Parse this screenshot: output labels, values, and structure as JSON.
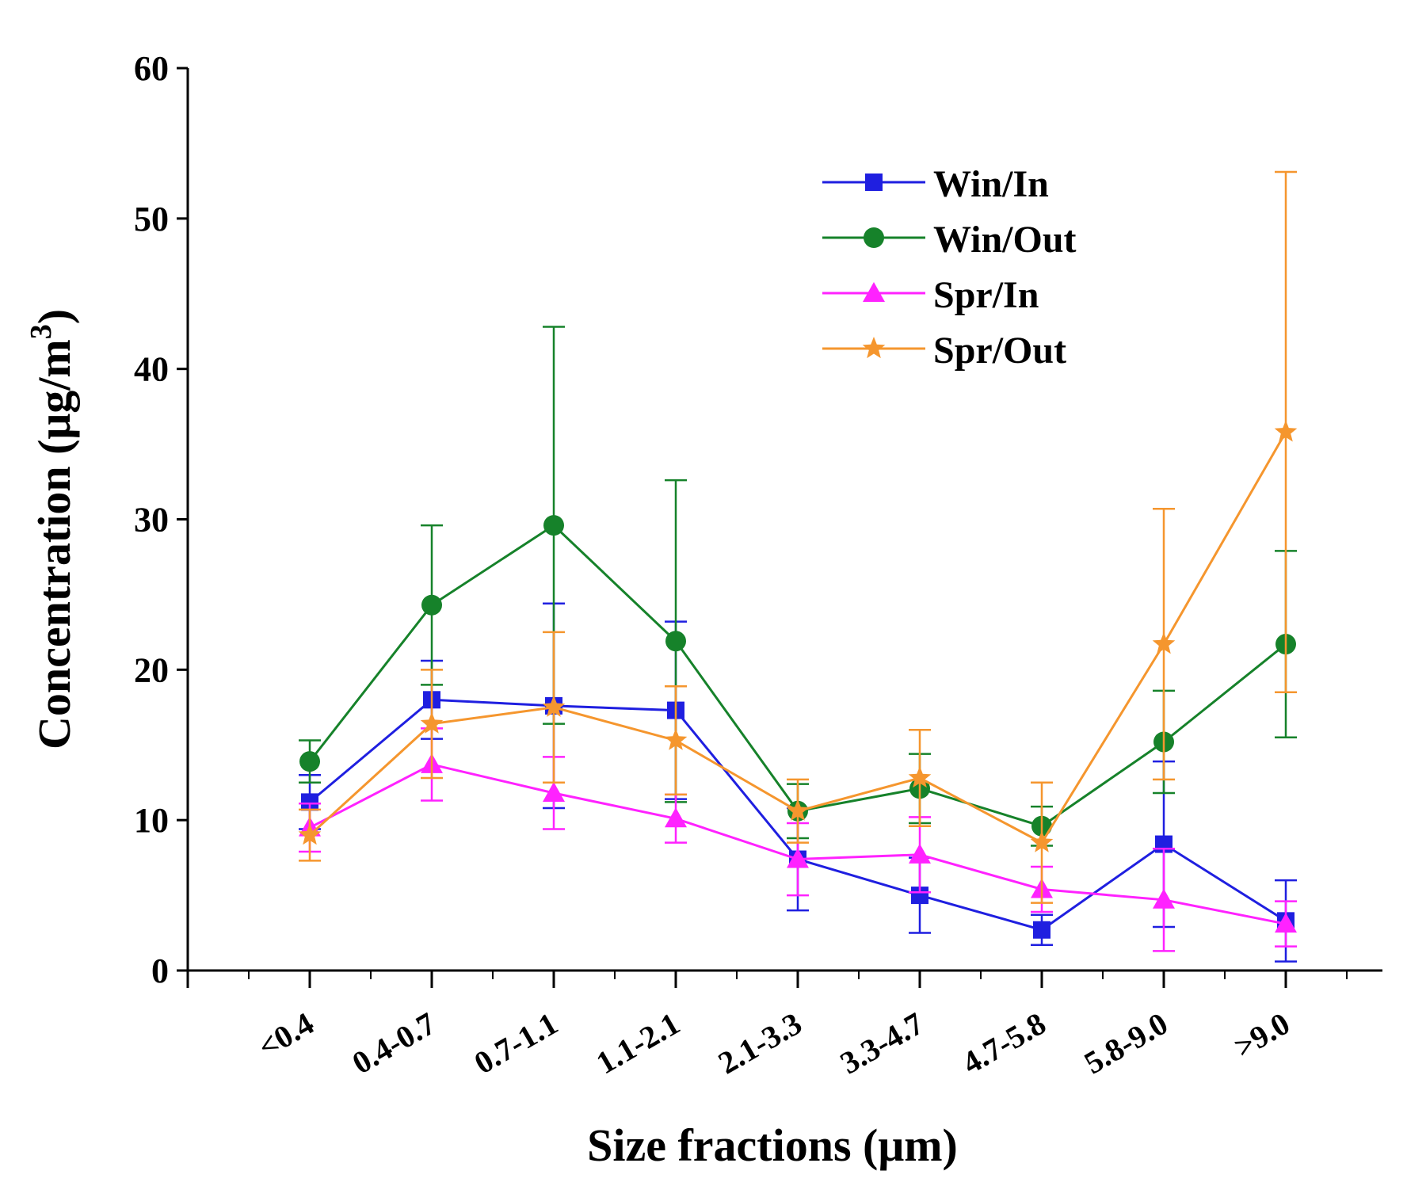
{
  "chart_data": {
    "type": "line",
    "xlabel": "Size fractions (μm)",
    "ylabel": "Concentration (μg/m",
    "ylabel_sup": "3",
    "ylabel_close": ")",
    "ylim": [
      0,
      60
    ],
    "yticks": [
      "0",
      "10",
      "20",
      "30",
      "40",
      "50",
      "60"
    ],
    "categories": [
      "<0.4",
      "0.4-0.7",
      "0.7-1.1",
      "1.1-2.1",
      "2.1-3.3",
      "3.3-4.7",
      "4.7-5.8",
      "5.8-9.0",
      ">9.0"
    ],
    "legend_position": "top-right",
    "series": [
      {
        "name": "Win/In",
        "color": "#1f1fe0",
        "marker": "square",
        "values": [
          11.2,
          18.0,
          17.6,
          17.3,
          7.4,
          5.0,
          2.7,
          8.4,
          3.3
        ],
        "errors": [
          1.8,
          2.6,
          6.8,
          5.9,
          3.4,
          2.5,
          1.0,
          5.5,
          2.7
        ]
      },
      {
        "name": "Win/Out",
        "color": "#16822a",
        "marker": "circle",
        "values": [
          13.9,
          24.3,
          29.6,
          21.9,
          10.6,
          12.1,
          9.6,
          15.2,
          21.7
        ],
        "errors": [
          1.4,
          5.3,
          13.2,
          10.7,
          1.8,
          2.3,
          1.3,
          3.4,
          6.2
        ]
      },
      {
        "name": "Spr/In",
        "color": "#ff22ff",
        "marker": "triangle",
        "values": [
          9.5,
          13.7,
          11.8,
          10.1,
          7.4,
          7.7,
          5.4,
          4.7,
          3.1
        ],
        "errors": [
          1.6,
          2.4,
          2.4,
          1.6,
          2.4,
          2.5,
          1.5,
          3.4,
          1.5
        ]
      },
      {
        "name": "Spr/Out",
        "color": "#f5962e",
        "marker": "star",
        "values": [
          9.0,
          16.4,
          17.5,
          15.3,
          10.6,
          12.8,
          8.5,
          21.7,
          35.8
        ],
        "errors": [
          1.7,
          3.6,
          5.0,
          3.6,
          2.1,
          3.2,
          4.0,
          9.0,
          17.3
        ]
      }
    ]
  }
}
